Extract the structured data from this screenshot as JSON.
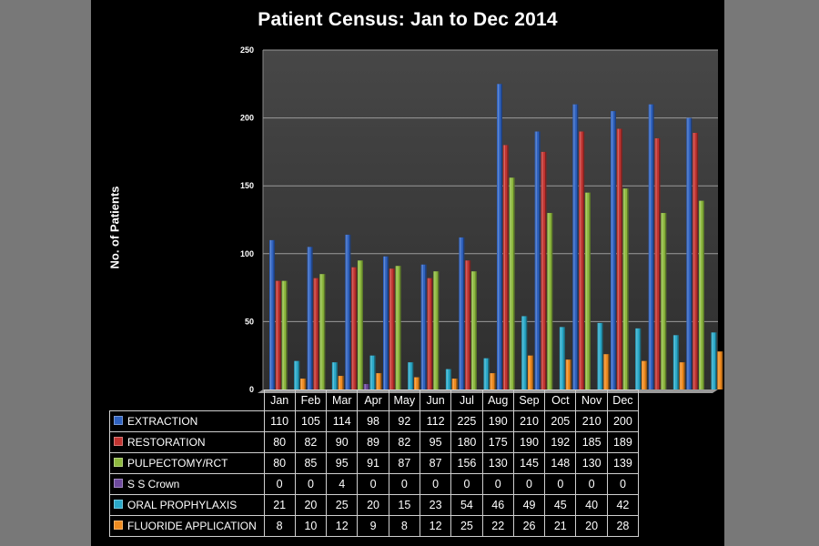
{
  "chart_data": {
    "type": "bar",
    "title": "Patient Census: Jan to Dec 2014",
    "ylabel": "No. of Patients",
    "xlabel": "",
    "ylim": [
      0,
      250
    ],
    "yticks": [
      0,
      50,
      100,
      150,
      200,
      250
    ],
    "grid": true,
    "legend": "data table below chart",
    "categories": [
      "Jan",
      "Feb",
      "Mar",
      "Apr",
      "May",
      "Jun",
      "Jul",
      "Aug",
      "Sep",
      "Oct",
      "Nov",
      "Dec"
    ],
    "series": [
      {
        "name": "EXTRACTION",
        "color": "#2f62c0",
        "values": [
          110,
          105,
          114,
          98,
          92,
          112,
          225,
          190,
          210,
          205,
          210,
          200
        ]
      },
      {
        "name": "RESTORATION",
        "color": "#c23431",
        "values": [
          80,
          82,
          90,
          89,
          82,
          95,
          180,
          175,
          190,
          192,
          185,
          189
        ]
      },
      {
        "name": "PULPECTOMY/RCT",
        "color": "#8db83e",
        "values": [
          80,
          85,
          95,
          91,
          87,
          87,
          156,
          130,
          145,
          148,
          130,
          139
        ]
      },
      {
        "name": "S S Crown",
        "color": "#6e4a9e",
        "values": [
          0,
          0,
          4,
          0,
          0,
          0,
          0,
          0,
          0,
          0,
          0,
          0
        ]
      },
      {
        "name": "ORAL PROPHYLAXIS",
        "color": "#2aa9c9",
        "values": [
          21,
          20,
          25,
          20,
          15,
          23,
          54,
          46,
          49,
          45,
          40,
          42
        ]
      },
      {
        "name": "FLUORIDE APPLICATION",
        "color": "#ef8b1f",
        "values": [
          8,
          10,
          12,
          9,
          8,
          12,
          25,
          22,
          26,
          21,
          20,
          28
        ]
      }
    ]
  }
}
